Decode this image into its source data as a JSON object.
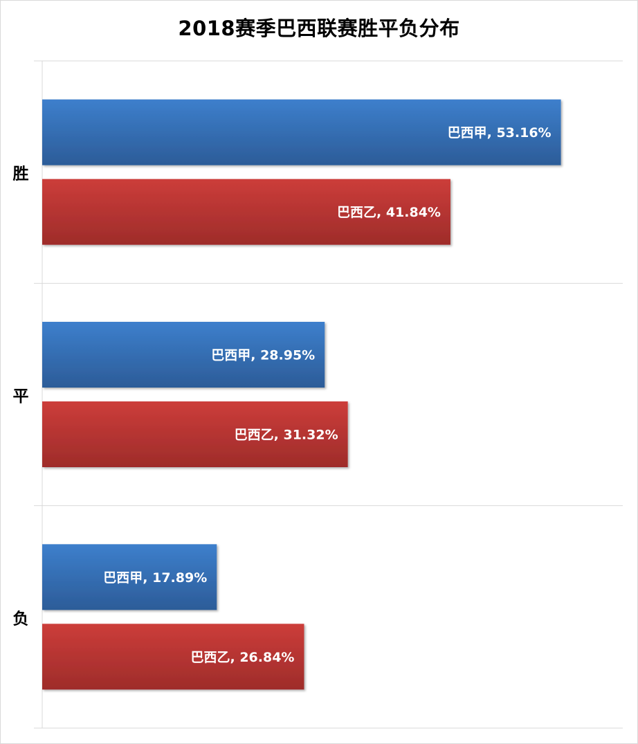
{
  "chart_data": {
    "type": "bar",
    "orientation": "horizontal",
    "title": "2018赛季巴西联赛胜平负分布",
    "categories": [
      "胜",
      "平",
      "负"
    ],
    "series": [
      {
        "name": "巴西甲",
        "values": [
          53.16,
          28.95,
          17.89
        ],
        "labels": [
          "巴西甲, 53.16%",
          "巴西甲, 28.95%",
          "巴西甲, 17.89%"
        ]
      },
      {
        "name": "巴西乙",
        "values": [
          41.84,
          31.32,
          26.84
        ],
        "labels": [
          "巴西乙, 41.84%",
          "巴西乙, 31.32%",
          "巴西乙, 26.84%"
        ]
      }
    ],
    "xlim": [
      0,
      59.5
    ],
    "xlabel": "",
    "ylabel": "",
    "grid": "horizontal separators",
    "legend": "none"
  },
  "colors": {
    "series_top": [
      "#3d7fcc",
      "#cc3d3a"
    ],
    "series_bottom": [
      "#2c5c98",
      "#9e2c2a"
    ],
    "grid": "#d9d9d9",
    "label_text": "#ffffff"
  }
}
